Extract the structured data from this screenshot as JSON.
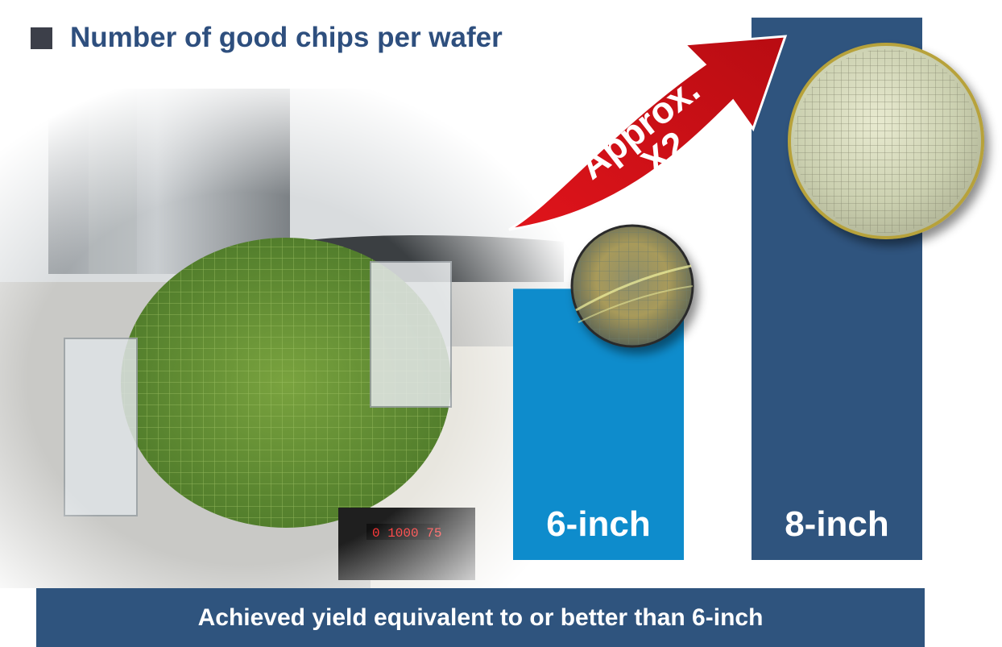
{
  "title": "Number of good chips per wafer",
  "arrow_label": {
    "line1": "Approx.",
    "line2": "X2"
  },
  "footer": "Achieved yield equivalent to or better than 6-inch",
  "colors": {
    "bar_6inch": "#0e8ccc",
    "bar_8inch": "#2f547e",
    "arrow": "#d10f17",
    "title": "#2e4f7e"
  },
  "chart_data": {
    "type": "bar",
    "categories": [
      "6-inch",
      "8-inch"
    ],
    "values": [
      1,
      2
    ],
    "ylim": [
      0,
      2.05
    ],
    "title": "Number of good chips per wafer",
    "xlabel": "",
    "ylabel": "",
    "grid": false
  }
}
